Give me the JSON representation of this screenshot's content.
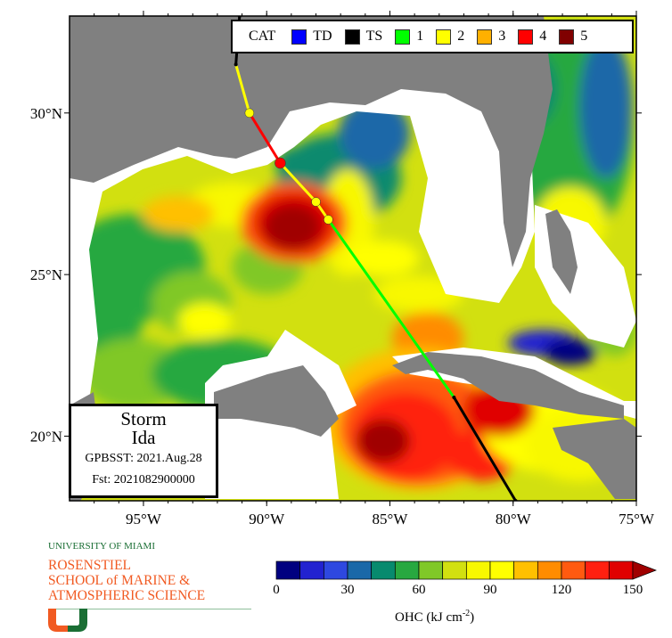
{
  "map": {
    "extent": {
      "lon": [
        -98.0,
        -75.0
      ],
      "lat": [
        18.0,
        33.0
      ]
    },
    "lon_ticks": [
      {
        "value": -95,
        "label": "95°W"
      },
      {
        "value": -90,
        "label": "90°W"
      },
      {
        "value": -85,
        "label": "85°W"
      },
      {
        "value": -80,
        "label": "80°W"
      },
      {
        "value": -75,
        "label": "75°W"
      }
    ],
    "lat_ticks": [
      {
        "value": 30,
        "label": "30°N"
      },
      {
        "value": 25,
        "label": "25°N"
      },
      {
        "value": 20,
        "label": "20°N"
      }
    ],
    "land_color": "#808080",
    "nodata_color": "#ffffff"
  },
  "legend": {
    "title": "CAT",
    "items": [
      {
        "label": "TD",
        "color": "#0000ff"
      },
      {
        "label": "TS",
        "color": "#000000"
      },
      {
        "label": "1",
        "color": "#00ff00"
      },
      {
        "label": "2",
        "color": "#ffff00"
      },
      {
        "label": "3",
        "color": "#ffb000"
      },
      {
        "label": "4",
        "color": "#ff0000"
      },
      {
        "label": "5",
        "color": "#800000"
      }
    ]
  },
  "track": [
    {
      "lon": -79.9,
      "lat": 18.0,
      "cat": "TS"
    },
    {
      "lon": -82.4,
      "lat": 21.2,
      "cat": "1"
    },
    {
      "lon": -87.5,
      "lat": 26.7,
      "cat": "2",
      "marker": true
    },
    {
      "lon": -88.0,
      "lat": 27.25,
      "cat": "2",
      "marker": true
    },
    {
      "lon": -89.45,
      "lat": 28.45,
      "cat": "4",
      "marker": true
    },
    {
      "lon": -90.7,
      "lat": 30.0,
      "cat": "2",
      "marker": true
    },
    {
      "lon": -91.25,
      "lat": 31.5,
      "cat": "TS"
    },
    {
      "lon": -91.1,
      "lat": 33.0,
      "cat": "TS"
    }
  ],
  "infobox": {
    "line1": "Storm",
    "line2": "Ida",
    "line3": "GPBSST: 2021.Aug.28",
    "line4": "Fst: 2021082900000"
  },
  "colorbar": {
    "title": "OHC (kJ cm",
    "title_exp": "-2",
    "title_end": ")",
    "min": 0,
    "max": 150,
    "step": 10,
    "labels": [
      "0",
      "30",
      "60",
      "90",
      "120",
      "150"
    ],
    "colors": [
      "#000080",
      "#2222d0",
      "#2e48e0",
      "#1a68a8",
      "#078a6e",
      "#28a840",
      "#80c828",
      "#d2e010",
      "#f8f800",
      "#ffff00",
      "#ffc000",
      "#ff8c00",
      "#ff5a10",
      "#ff2010",
      "#e00000"
    ],
    "over_color": "#a00000"
  },
  "logo": {
    "university": "UNIVERSITY OF MIAMI",
    "school_line1": "ROSENSTIEL",
    "school_line2": "SCHOOL of MARINE &",
    "school_line3": "ATMOSPHERIC SCIENCE"
  }
}
